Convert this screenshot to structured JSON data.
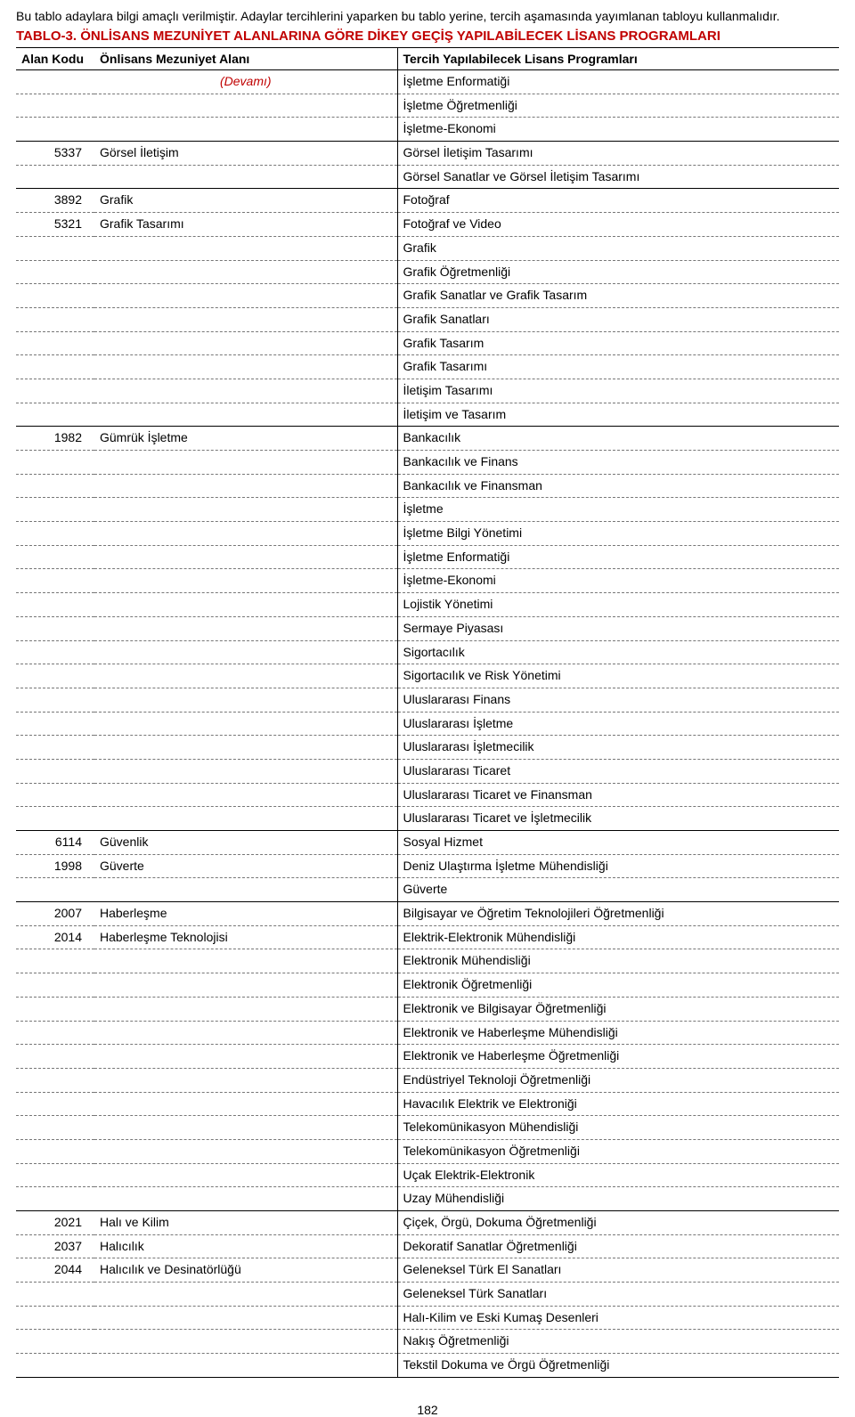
{
  "notice": "Bu tablo adaylara bilgi amaçlı verilmiştir. Adaylar tercihlerini yaparken bu tablo yerine, tercih aşamasında yayımlanan tabloyu kullanmalıdır.",
  "title": "TABLO-3. ÖNLİSANS MEZUNİYET ALANLARINA GÖRE DİKEY GEÇİŞ YAPILABİLECEK LİSANS PROGRAMLARI",
  "headers": {
    "code": "Alan Kodu",
    "area": "Önlisans Mezuniyet Alanı",
    "programs": "Tercih Yapılabilecek Lisans Programları"
  },
  "devami": "(Devamı)",
  "page_number": "182",
  "rows": [
    {
      "code": "",
      "area_devami": true,
      "programs": [
        "İşletme Enformatiği",
        "İşletme Öğretmenliği",
        "İşletme-Ekonomi"
      ],
      "group_start": false
    },
    {
      "code": "5337",
      "area": "Görsel İletişim",
      "programs": [
        "Görsel İletişim Tasarımı",
        "Görsel Sanatlar ve Görsel İletişim Tasarımı"
      ],
      "group_start": true
    },
    {
      "code": "3892",
      "area": "Grafik",
      "programs": [
        "Fotoğraf"
      ],
      "group_start": true
    },
    {
      "code": "5321",
      "area": "Grafik Tasarımı",
      "programs": [
        "Fotoğraf ve Video",
        "Grafik",
        "Grafik Öğretmenliği",
        "Grafik Sanatlar ve Grafik Tasarım",
        "Grafik Sanatları",
        "Grafik Tasarım",
        "Grafik Tasarımı",
        "İletişim Tasarımı",
        "İletişim ve Tasarım"
      ],
      "group_start": false
    },
    {
      "code": "1982",
      "area": "Gümrük İşletme",
      "programs": [
        "Bankacılık",
        "Bankacılık ve Finans",
        "Bankacılık ve Finansman",
        "İşletme",
        "İşletme Bilgi Yönetimi",
        "İşletme Enformatiği",
        "İşletme-Ekonomi",
        "Lojistik Yönetimi",
        "Sermaye Piyasası",
        "Sigortacılık",
        "Sigortacılık ve Risk Yönetimi",
        "Uluslararası Finans",
        "Uluslararası İşletme",
        "Uluslararası İşletmecilik",
        "Uluslararası Ticaret",
        "Uluslararası Ticaret ve Finansman",
        "Uluslararası Ticaret ve İşletmecilik"
      ],
      "group_start": true
    },
    {
      "code": "6114",
      "area": "Güvenlik",
      "programs": [
        "Sosyal Hizmet"
      ],
      "group_start": true
    },
    {
      "code": "1998",
      "area": "Güverte",
      "programs": [
        "Deniz Ulaştırma İşletme Mühendisliği",
        "Güverte"
      ],
      "group_start": false
    },
    {
      "code": "2007",
      "area": "Haberleşme",
      "programs": [
        "Bilgisayar ve Öğretim Teknolojileri Öğretmenliği"
      ],
      "group_start": true
    },
    {
      "code": "2014",
      "area": "Haberleşme Teknolojisi",
      "programs": [
        "Elektrik-Elektronik Mühendisliği",
        "Elektronik Mühendisliği",
        "Elektronik Öğretmenliği",
        "Elektronik ve Bilgisayar Öğretmenliği",
        "Elektronik ve Haberleşme Mühendisliği",
        "Elektronik ve Haberleşme Öğretmenliği",
        "Endüstriyel Teknoloji Öğretmenliği",
        "Havacılık Elektrik ve Elektroniği",
        "Telekomünikasyon Mühendisliği",
        "Telekomünikasyon Öğretmenliği",
        "Uçak Elektrik-Elektronik",
        "Uzay Mühendisliği"
      ],
      "group_start": false
    },
    {
      "code": "2021",
      "area": "Halı ve Kilim",
      "programs": [
        "Çiçek, Örgü, Dokuma Öğretmenliği"
      ],
      "group_start": true
    },
    {
      "code": "2037",
      "area": "Halıcılık",
      "programs": [
        "Dekoratif Sanatlar Öğretmenliği"
      ],
      "group_start": false
    },
    {
      "code": "2044",
      "area": "Halıcılık ve Desinatörlüğü",
      "programs": [
        "Geleneksel Türk El Sanatları",
        "Geleneksel Türk Sanatları",
        "Halı-Kilim ve Eski Kumaş Desenleri",
        "Nakış Öğretmenliği",
        "Tekstil Dokuma ve Örgü Öğretmenliği"
      ],
      "group_start": false
    }
  ]
}
